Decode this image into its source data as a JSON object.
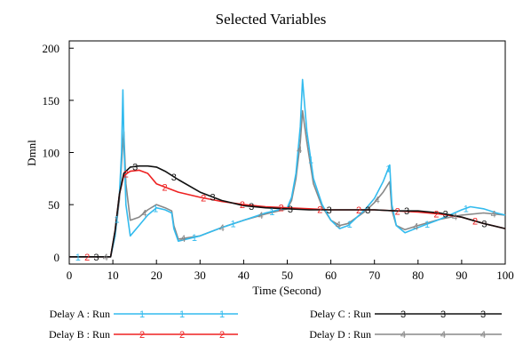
{
  "chart_data": {
    "type": "line",
    "title": "Selected Variables",
    "xlabel": "Time (Second)",
    "ylabel": "Dmnl",
    "xlim": [
      0,
      100
    ],
    "ylim": [
      -7,
      207
    ],
    "xticks": [
      0,
      10,
      20,
      30,
      40,
      50,
      60,
      70,
      80,
      90,
      100
    ],
    "yticks": [
      0,
      50,
      100,
      150,
      200
    ],
    "grid": false,
    "legend_position": "bottom",
    "series": [
      {
        "name": "Delay A : Run",
        "marker": "1",
        "color": "#33bbee",
        "x": [
          0,
          9.5,
          10.5,
          11.5,
          12,
          12.3,
          12.6,
          13,
          14,
          16,
          18,
          20,
          22,
          23.5,
          24,
          25,
          30,
          35,
          40,
          45,
          50,
          51,
          52,
          53,
          53.5,
          54.5,
          56,
          58,
          60,
          62,
          64,
          66,
          68,
          70,
          72,
          73.5,
          74,
          75,
          77,
          80,
          85,
          90,
          92,
          95,
          98,
          100
        ],
        "y": [
          0,
          0,
          20,
          60,
          100,
          160,
          100,
          50,
          20,
          30,
          40,
          47,
          45,
          42,
          27,
          15,
          20,
          28,
          35,
          42,
          47,
          57,
          80,
          125,
          170,
          120,
          75,
          50,
          35,
          27,
          30,
          38,
          46,
          56,
          72,
          88,
          50,
          30,
          23,
          28,
          36,
          45,
          48,
          46,
          42,
          40
        ]
      },
      {
        "name": "Delay B : Run",
        "marker": "2",
        "color": "#ee2222",
        "x": [
          0,
          9.5,
          10.5,
          11.5,
          12.5,
          14,
          16,
          18,
          20,
          25,
          30,
          35,
          40,
          45,
          50,
          55,
          60,
          65,
          70,
          75,
          80,
          85,
          90,
          95,
          100
        ],
        "y": [
          0,
          0,
          25,
          60,
          78,
          82,
          83,
          80,
          70,
          62,
          57,
          53,
          50,
          48,
          47,
          46,
          45,
          45,
          45,
          44,
          43,
          41,
          38,
          32,
          27
        ]
      },
      {
        "name": "Delay C : Run",
        "marker": "3",
        "color": "#111111",
        "x": [
          0,
          9.5,
          10.5,
          11.5,
          12.5,
          14,
          16,
          18,
          20,
          22,
          25,
          30,
          35,
          40,
          45,
          50,
          55,
          60,
          65,
          70,
          75,
          80,
          85,
          90,
          95,
          100
        ],
        "y": [
          0,
          0,
          25,
          60,
          80,
          86,
          87,
          87,
          86,
          82,
          74,
          62,
          54,
          49,
          47,
          46,
          45,
          45,
          45,
          45,
          44,
          44,
          42,
          38,
          32,
          27
        ]
      },
      {
        "name": "Delay D : Run",
        "marker": "4",
        "color": "#888888",
        "x": [
          0,
          9.5,
          10.5,
          11.5,
          12,
          12.5,
          13,
          14,
          16,
          18,
          20,
          22,
          23.5,
          24,
          25,
          30,
          35,
          40,
          45,
          50,
          51,
          52,
          53,
          53.5,
          54.5,
          56,
          58,
          60,
          62,
          64,
          66,
          68,
          70,
          72,
          73.5,
          74,
          75,
          77,
          80,
          85,
          90,
          95,
          100
        ],
        "y": [
          0,
          0,
          20,
          55,
          90,
          120,
          70,
          35,
          38,
          45,
          50,
          47,
          44,
          30,
          17,
          20,
          28,
          35,
          41,
          46,
          54,
          75,
          110,
          140,
          110,
          70,
          48,
          35,
          30,
          32,
          38,
          44,
          52,
          62,
          72,
          45,
          30,
          26,
          30,
          36,
          40,
          42,
          40
        ]
      }
    ]
  }
}
